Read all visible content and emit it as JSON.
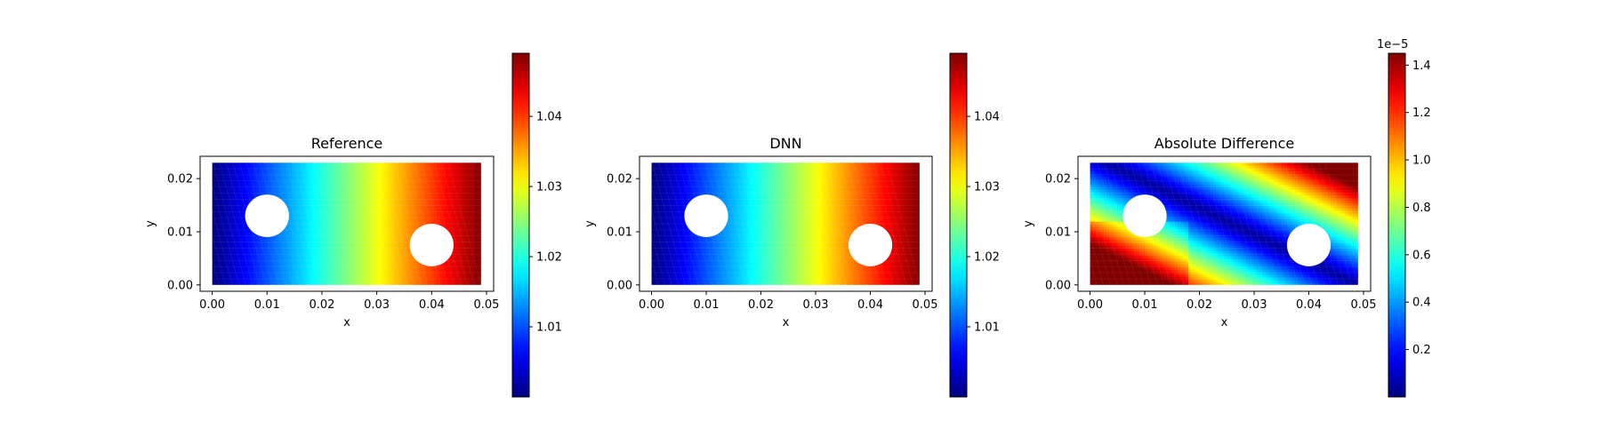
{
  "chart_data": [
    {
      "type": "heatmap",
      "title": "Reference",
      "xlabel": "x",
      "ylabel": "y",
      "xlim": [
        -0.0022,
        0.0513
      ],
      "ylim": [
        -0.0012,
        0.0242
      ],
      "x_ticks": [
        "0.00",
        "0.01",
        "0.02",
        "0.03",
        "0.04",
        "0.05"
      ],
      "y_ticks": [
        "0.00",
        "0.01",
        "0.02"
      ],
      "domain": {
        "x": [
          0.0,
          0.049
        ],
        "y": [
          0.0,
          0.023
        ]
      },
      "holes": [
        {
          "cx": 0.01,
          "cy": 0.013,
          "r": 0.004
        },
        {
          "cx": 0.04,
          "cy": 0.0075,
          "r": 0.004
        }
      ],
      "field": "linear-x",
      "colormap": "jet",
      "colorbar": {
        "min": 1.0,
        "max": 1.049,
        "ticks": [
          "1.01",
          "1.02",
          "1.03",
          "1.04"
        ],
        "offset_label": ""
      }
    },
    {
      "type": "heatmap",
      "title": "DNN",
      "xlabel": "x",
      "ylabel": "y",
      "xlim": [
        -0.0022,
        0.0513
      ],
      "ylim": [
        -0.0012,
        0.0242
      ],
      "x_ticks": [
        "0.00",
        "0.01",
        "0.02",
        "0.03",
        "0.04",
        "0.05"
      ],
      "y_ticks": [
        "0.00",
        "0.01",
        "0.02"
      ],
      "domain": {
        "x": [
          0.0,
          0.049
        ],
        "y": [
          0.0,
          0.023
        ]
      },
      "holes": [
        {
          "cx": 0.01,
          "cy": 0.013,
          "r": 0.004
        },
        {
          "cx": 0.04,
          "cy": 0.0075,
          "r": 0.004
        }
      ],
      "field": "linear-x",
      "colormap": "jet",
      "colorbar": {
        "min": 1.0,
        "max": 1.049,
        "ticks": [
          "1.01",
          "1.02",
          "1.03",
          "1.04"
        ],
        "offset_label": ""
      }
    },
    {
      "type": "heatmap",
      "title": "Absolute Difference",
      "xlabel": "x",
      "ylabel": "y",
      "xlim": [
        -0.0022,
        0.0513
      ],
      "ylim": [
        -0.0012,
        0.0242
      ],
      "x_ticks": [
        "0.00",
        "0.01",
        "0.02",
        "0.03",
        "0.04",
        "0.05"
      ],
      "y_ticks": [
        "0.00",
        "0.01",
        "0.02"
      ],
      "domain": {
        "x": [
          0.0,
          0.049
        ],
        "y": [
          0.0,
          0.023
        ]
      },
      "holes": [
        {
          "cx": 0.01,
          "cy": 0.013,
          "r": 0.004
        },
        {
          "cx": 0.04,
          "cy": 0.0075,
          "r": 0.004
        }
      ],
      "field": "abs-diff",
      "colormap": "jet",
      "colorbar": {
        "min": 0.0,
        "max": 1.45,
        "ticks": [
          "0.2",
          "0.4",
          "0.6",
          "0.8",
          "1.0",
          "1.2",
          "1.4"
        ],
        "offset_label": "1e−5"
      }
    }
  ]
}
